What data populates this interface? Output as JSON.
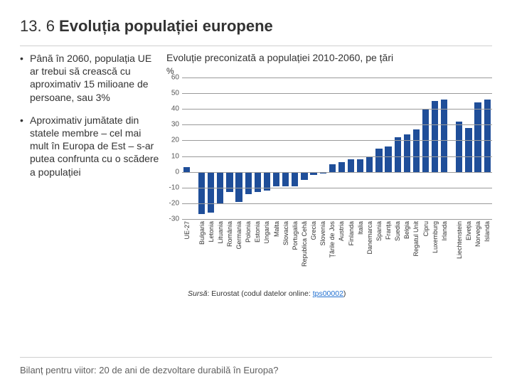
{
  "title_prefix": "13. 6 ",
  "title_main": "Evoluția populației europene",
  "bullets": [
    "Până în 2060, populația UE ar trebui să crească cu aproximativ 15 milioane de persoane, sau 3%",
    "Aproximativ jumătate din statele membre – cel mai mult în Europa de Est – s-ar putea confrunta cu o scădere a populației"
  ],
  "chart": {
    "title": "Evoluție preconizată a populației 2010-2060, pe țări",
    "y_label": "%",
    "type": "bar",
    "ylim": [
      -30,
      60
    ],
    "ytick_step": 10,
    "grid_color": "#9a9a9a",
    "bar_color": "#1f4e99",
    "background_color": "#ffffff",
    "groups": [
      {
        "items": [
          {
            "label": "UE-27",
            "value": 3
          }
        ]
      },
      {
        "items": [
          {
            "label": "Bulgaria",
            "value": -27
          },
          {
            "label": "Letonia",
            "value": -26
          },
          {
            "label": "Lituania",
            "value": -20
          },
          {
            "label": "România",
            "value": -13
          },
          {
            "label": "Germania",
            "value": -19
          },
          {
            "label": "Polonia",
            "value": -14
          },
          {
            "label": "Estonia",
            "value": -13
          },
          {
            "label": "Ungaria",
            "value": -12
          },
          {
            "label": "Malta",
            "value": -9
          },
          {
            "label": "Slovacia",
            "value": -9
          },
          {
            "label": "Portugalia",
            "value": -9
          },
          {
            "label": "Republica Cehă",
            "value": -5
          },
          {
            "label": "Grecia",
            "value": -2
          },
          {
            "label": "Slovenia",
            "value": -1
          },
          {
            "label": "Țările de Jos",
            "value": 5
          },
          {
            "label": "Austria",
            "value": 6
          },
          {
            "label": "Finlanda",
            "value": 8
          },
          {
            "label": "Italia",
            "value": 8
          },
          {
            "label": "Danemarca",
            "value": 10
          },
          {
            "label": "Spania",
            "value": 15
          },
          {
            "label": "Franța",
            "value": 16
          },
          {
            "label": "Suedia",
            "value": 22
          },
          {
            "label": "Belgia",
            "value": 24
          },
          {
            "label": "Regatul Unit",
            "value": 27
          },
          {
            "label": "Cipru",
            "value": 40
          },
          {
            "label": "Luxemburg",
            "value": 45
          },
          {
            "label": "Irlanda",
            "value": 46
          }
        ]
      },
      {
        "items": [
          {
            "label": "Liechtenstein",
            "value": 32
          },
          {
            "label": "Elveția",
            "value": 28
          },
          {
            "label": "Norvegia",
            "value": 44
          },
          {
            "label": "Islanda",
            "value": 46
          }
        ]
      }
    ]
  },
  "source_label": "Sursă",
  "source_text": ": Eurostat (codul datelor online: ",
  "source_code": "tps00002",
  "footer": "Bilanț pentru viitor: 20 de ani de dezvoltare durabilă în Europa?"
}
